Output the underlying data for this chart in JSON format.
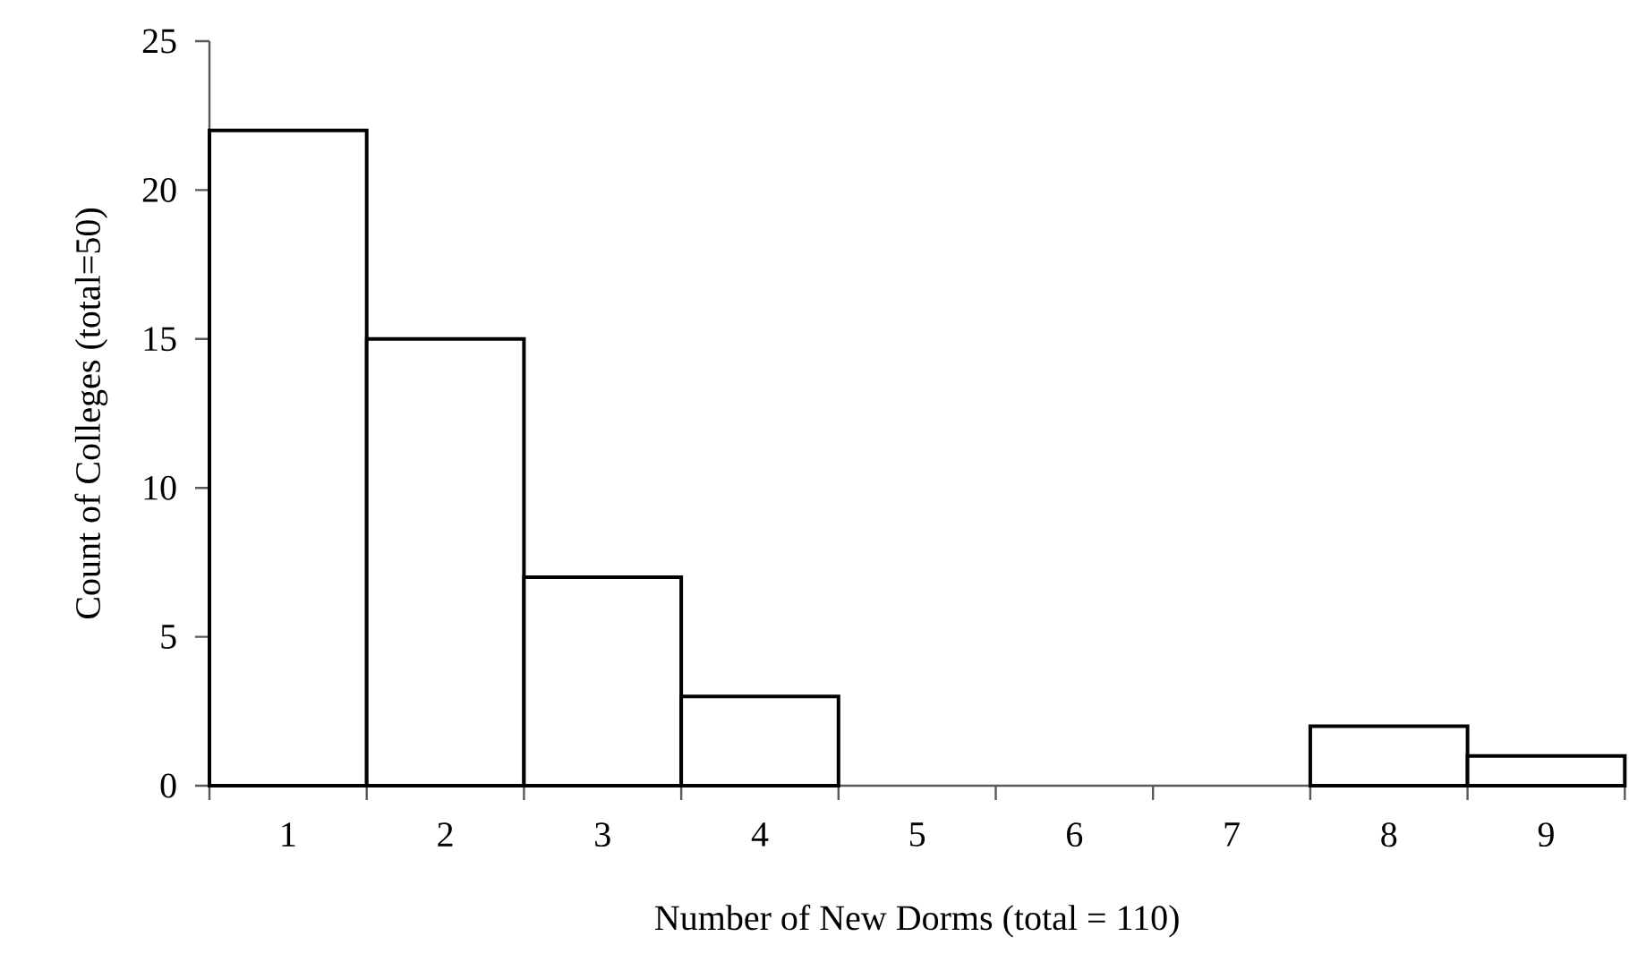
{
  "chart_data": {
    "type": "bar",
    "xlabel": "Number of New Dorms (total = 110)",
    "ylabel": "Count of Colleges (total=50)",
    "categories": [
      "1",
      "2",
      "3",
      "4",
      "5",
      "6",
      "7",
      "8",
      "9"
    ],
    "values": [
      22,
      15,
      7,
      3,
      0,
      0,
      0,
      2,
      1
    ],
    "color": "#ffffff",
    "ylim": [
      0,
      25
    ],
    "yticks": [
      0,
      5,
      10,
      15,
      20,
      25
    ],
    "grid": false
  }
}
